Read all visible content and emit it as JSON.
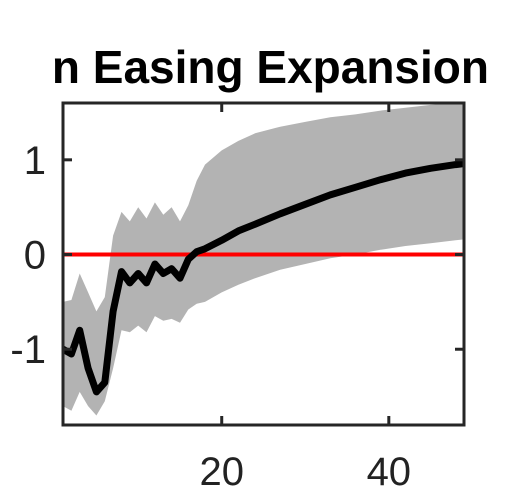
{
  "chart_data": {
    "type": "line",
    "title": "n Easing Expansion",
    "xlabel": "",
    "ylabel": "",
    "xlim": [
      1,
      49
    ],
    "ylim": [
      -1.8,
      1.6
    ],
    "xticks": [
      20,
      40
    ],
    "xtick_labels": [
      "20",
      "40"
    ],
    "yticks": [
      1,
      0,
      -1
    ],
    "ytick_labels": [
      "1",
      "0",
      "-1"
    ],
    "grid": false,
    "legend": "none",
    "reference_line": {
      "y": 0,
      "color": "#ff0000"
    },
    "series": [
      {
        "color": "#000000",
        "band_color": "#b3b3b3",
        "x": [
          1,
          2,
          3,
          4,
          5,
          6,
          7,
          8,
          9,
          10,
          11,
          12,
          13,
          14,
          15,
          16,
          17,
          18,
          20,
          22,
          24,
          27,
          30,
          33,
          36,
          39,
          42,
          45,
          48,
          49
        ],
        "y": [
          -1.0,
          -1.05,
          -0.8,
          -1.2,
          -1.45,
          -1.35,
          -0.6,
          -0.18,
          -0.3,
          -0.2,
          -0.3,
          -0.1,
          -0.2,
          -0.15,
          -0.25,
          -0.05,
          0.03,
          0.06,
          0.15,
          0.25,
          0.32,
          0.43,
          0.53,
          0.63,
          0.71,
          0.79,
          0.86,
          0.91,
          0.95,
          0.96
        ],
        "lower": [
          -1.6,
          -1.65,
          -1.45,
          -1.6,
          -1.7,
          -1.55,
          -1.2,
          -0.8,
          -0.82,
          -0.75,
          -0.82,
          -0.65,
          -0.7,
          -0.68,
          -0.72,
          -0.58,
          -0.52,
          -0.5,
          -0.4,
          -0.32,
          -0.25,
          -0.16,
          -0.1,
          -0.04,
          0.0,
          0.05,
          0.09,
          0.12,
          0.15,
          0.16
        ],
        "upper": [
          -0.5,
          -0.48,
          -0.2,
          -0.4,
          -0.6,
          -0.45,
          0.2,
          0.45,
          0.35,
          0.5,
          0.38,
          0.55,
          0.42,
          0.5,
          0.35,
          0.52,
          0.78,
          0.95,
          1.1,
          1.2,
          1.28,
          1.35,
          1.4,
          1.45,
          1.48,
          1.52,
          1.55,
          1.58,
          1.6,
          1.62
        ]
      }
    ]
  }
}
